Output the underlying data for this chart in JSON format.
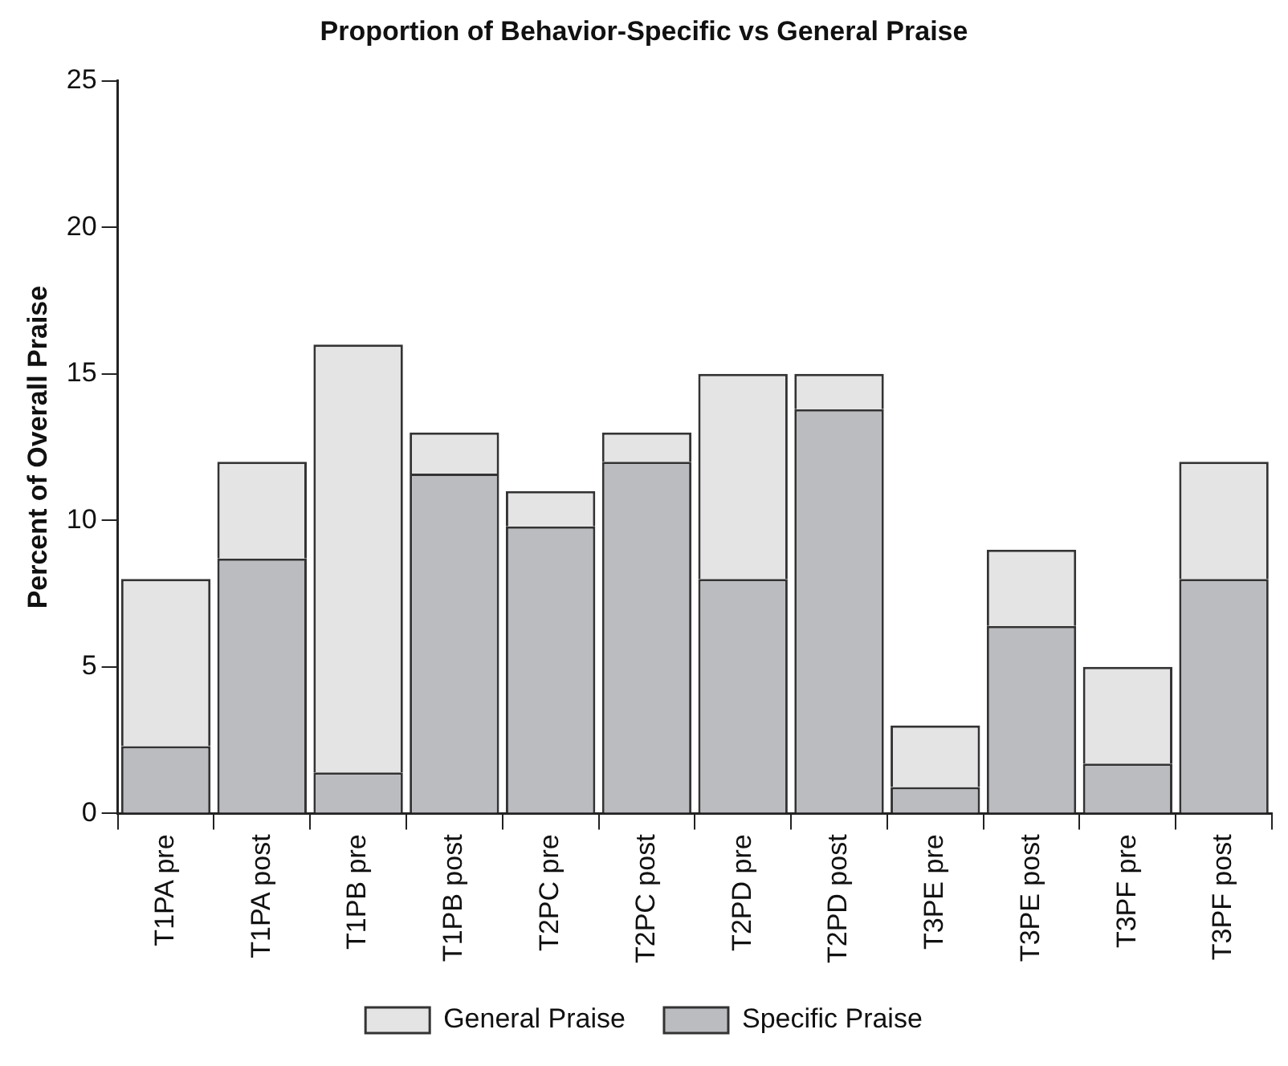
{
  "chart_data": {
    "type": "bar",
    "title": "Proportion of Behavior-Specific vs General Praise",
    "ylabel": "Percent of Overall Praise",
    "categories": [
      "T1PA pre",
      "T1PA post",
      "T1PB pre",
      "T1PB post",
      "T2PC pre",
      "T2PC post",
      "T2PD pre",
      "T2PD post",
      "T3PE pre",
      "T3PE post",
      "T3PF pre",
      "T3PF post"
    ],
    "stacked": true,
    "series": [
      {
        "name": "Specific Praise",
        "color": "#bbbcc0",
        "values": [
          2.3,
          8.7,
          1.4,
          11.6,
          9.8,
          12.0,
          8.0,
          13.8,
          0.9,
          6.4,
          1.7,
          8.0
        ]
      },
      {
        "name": "General Praise",
        "color": "#e4e4e4",
        "values": [
          5.7,
          3.3,
          14.6,
          1.4,
          1.2,
          1.0,
          7.0,
          1.2,
          2.1,
          2.6,
          3.3,
          4.0
        ]
      }
    ],
    "ylim": [
      0,
      25
    ],
    "yticks": [
      0,
      5,
      10,
      15,
      20,
      25
    ],
    "grid": false,
    "legend": "bottom"
  }
}
